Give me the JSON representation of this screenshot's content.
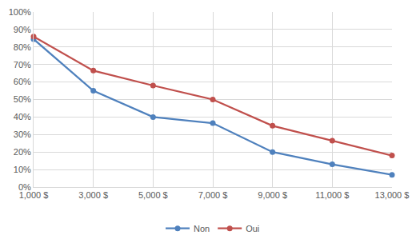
{
  "chart_data": {
    "type": "line",
    "categories": [
      "1,000 $",
      "3,000 $",
      "5,000 $",
      "7,000 $",
      "9,000 $",
      "11,000 $",
      "13,000 $"
    ],
    "series": [
      {
        "name": "Non",
        "color": "#4f81bd",
        "values": [
          84.5,
          55,
          40,
          36.5,
          20,
          13,
          7
        ]
      },
      {
        "name": "Oui",
        "color": "#c0504d",
        "values": [
          86,
          66.5,
          58,
          50,
          35,
          26.5,
          18
        ]
      }
    ],
    "ylim": [
      0,
      100
    ],
    "yticks": [
      {
        "value": 0,
        "label": "0%"
      },
      {
        "value": 10,
        "label": "10%"
      },
      {
        "value": 20,
        "label": "20%"
      },
      {
        "value": 30,
        "label": "30%"
      },
      {
        "value": 40,
        "label": "40%"
      },
      {
        "value": 50,
        "label": "50%"
      },
      {
        "value": 60,
        "label": "60%"
      },
      {
        "value": 70,
        "label": "70%"
      },
      {
        "value": 80,
        "label": "80%"
      },
      {
        "value": 90,
        "label": "90%"
      },
      {
        "value": 100,
        "label": "100%"
      }
    ],
    "grid": true,
    "legend": "bottom",
    "marker": "circle"
  }
}
